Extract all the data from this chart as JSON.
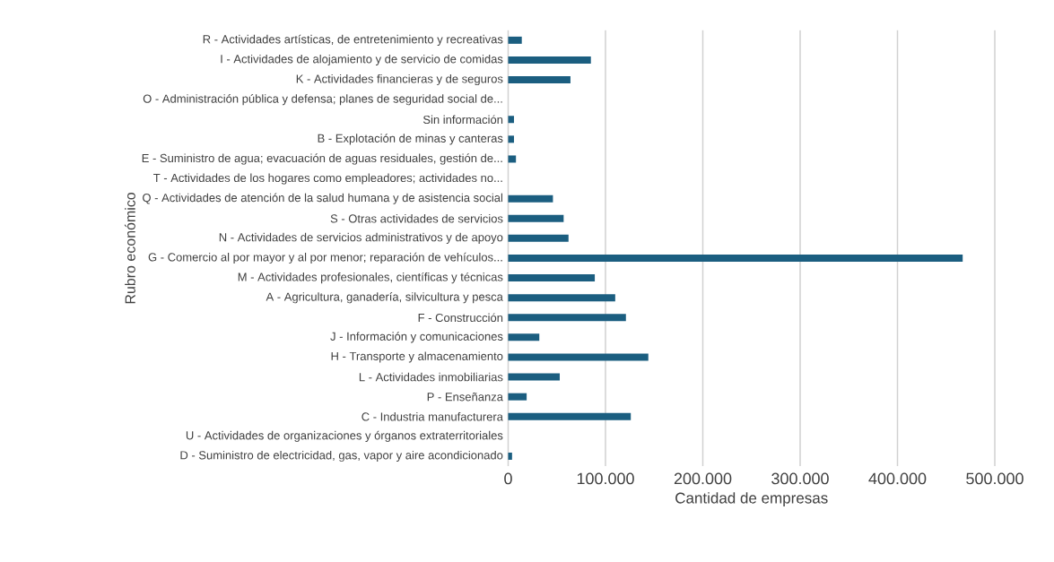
{
  "chart_data": {
    "type": "bar",
    "orientation": "horizontal",
    "xlabel": "Cantidad de empresas",
    "ylabel": "Rubro económico",
    "categories": [
      "R - Actividades artísticas, de entretenimiento y recreativas",
      "I - Actividades de alojamiento y de servicio de comidas",
      "K - Actividades financieras y de seguros",
      "O - Administración pública y defensa; planes de seguridad social de...",
      "Sin información",
      "B - Explotación de minas y canteras",
      "E - Suministro de agua; evacuación de aguas residuales, gestión de...",
      "T - Actividades de los hogares como empleadores; actividades no...",
      "Q - Actividades de atención de la salud humana y de asistencia social",
      "S - Otras actividades de servicios",
      "N - Actividades de servicios administrativos y de apoyo",
      "G - Comercio al por mayor y al por menor; reparación de vehículos...",
      "M - Actividades profesionales, científicas y técnicas",
      "A - Agricultura, ganadería, silvicultura y pesca",
      "F - Construcción",
      "J - Información y comunicaciones",
      "H - Transporte y almacenamiento",
      "L - Actividades inmobiliarias",
      "P - Enseñanza",
      "C - Industria manufacturera",
      "U - Actividades de organizaciones y órganos extraterritoriales",
      "D - Suministro de electricidad, gas, vapor y aire acondicionado"
    ],
    "values": [
      14000,
      85000,
      64000,
      0,
      6000,
      6000,
      8000,
      0,
      46000,
      57000,
      62000,
      467000,
      89000,
      110000,
      121000,
      32000,
      144000,
      53000,
      19000,
      126000,
      0,
      4000
    ],
    "color": "#1b5e80",
    "xlim": [
      0,
      500000
    ],
    "xticks": [
      0,
      {
        "value": 100000,
        "label": "100.000"
      },
      {
        "value": 200000,
        "label": "200.000"
      },
      {
        "value": 300000,
        "label": "300.000"
      },
      {
        "value": 400000,
        "label": "400.000"
      },
      {
        "value": 500000,
        "label": "500.000"
      }
    ],
    "grid": "x"
  }
}
